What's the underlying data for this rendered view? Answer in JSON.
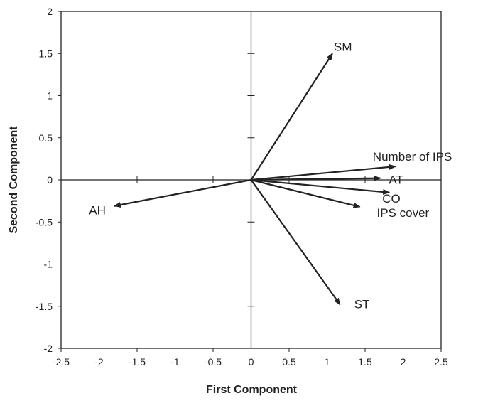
{
  "chart_data": {
    "type": "biplot",
    "title": "",
    "xlabel": "First Component",
    "ylabel": "Second Component",
    "xlim": [
      -2.5,
      2.5
    ],
    "ylim": [
      -2,
      2
    ],
    "x_ticks": [
      "-2.5",
      "-2",
      "-1.5",
      "-1",
      "-0.5",
      "0",
      "0.5",
      "1",
      "1.5",
      "2",
      "2.5"
    ],
    "y_ticks": [
      "2",
      "1.5",
      "1",
      "0.5",
      "0",
      "-0.5",
      "-1",
      "-1.5",
      "-2"
    ],
    "grid": false,
    "legend": "none",
    "vectors": [
      {
        "name": "SM",
        "x": 1.07,
        "y": 1.5
      },
      {
        "name": "Number of IPS",
        "x": 1.9,
        "y": 0.16
      },
      {
        "name": "AT",
        "x": 1.7,
        "y": 0.02
      },
      {
        "name": "CO",
        "x": 1.82,
        "y": -0.15
      },
      {
        "name": "IPS cover",
        "x": 1.43,
        "y": -0.32
      },
      {
        "name": "ST",
        "x": 1.17,
        "y": -1.48
      },
      {
        "name": "AH",
        "x": -1.8,
        "y": -0.31
      }
    ]
  },
  "colors": {
    "line": "#222222",
    "frame": "#222222",
    "background": "#ffffff"
  }
}
